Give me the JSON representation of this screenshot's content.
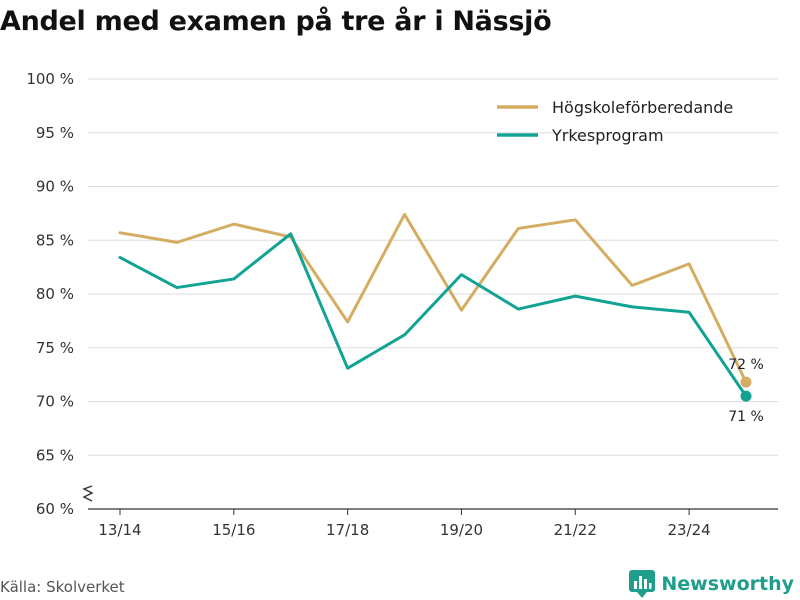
{
  "header": {
    "title": "Andel med examen på tre år i Nässjö"
  },
  "footer": {
    "source": "Källa: Skolverket",
    "brand": "Newsworthy"
  },
  "colors": {
    "series_1": "#d4ad62",
    "series_2": "#11a393",
    "grid": "#dddddd",
    "brand": "#1f9e8c"
  },
  "icons": {
    "brand": "newsworthy-logo-icon",
    "axis_break": "axis-break-icon"
  },
  "chart_data": {
    "type": "line",
    "title": "Andel med examen på tre år i Nässjö",
    "x": [
      "13/14",
      "14/15",
      "15/16",
      "16/17",
      "17/18",
      "18/19",
      "19/20",
      "20/21",
      "21/22",
      "22/23",
      "23/24",
      "24/25"
    ],
    "x_tick_labels": [
      "13/14",
      "15/16",
      "17/18",
      "19/20",
      "21/22",
      "23/24"
    ],
    "y_ticks": [
      60,
      65,
      70,
      75,
      80,
      85,
      90,
      95,
      100
    ],
    "y_tick_labels": [
      "60 %",
      "65 %",
      "70 %",
      "75 %",
      "80 %",
      "85 %",
      "90 %",
      "95 %",
      "100 %"
    ],
    "ylim": [
      60,
      100
    ],
    "y_axis_break": true,
    "grid": true,
    "legend_position": "top-right",
    "series": [
      {
        "name": "Högskoleförberedande",
        "values": [
          85.7,
          84.8,
          86.5,
          85.3,
          77.4,
          87.4,
          78.5,
          86.1,
          86.9,
          80.8,
          82.8,
          71.8
        ],
        "end_label": "72 %"
      },
      {
        "name": "Yrkesprogram",
        "values": [
          83.4,
          80.6,
          81.4,
          85.6,
          73.1,
          76.2,
          81.8,
          78.6,
          79.8,
          78.8,
          78.3,
          70.5
        ],
        "end_label": "71 %"
      }
    ]
  }
}
